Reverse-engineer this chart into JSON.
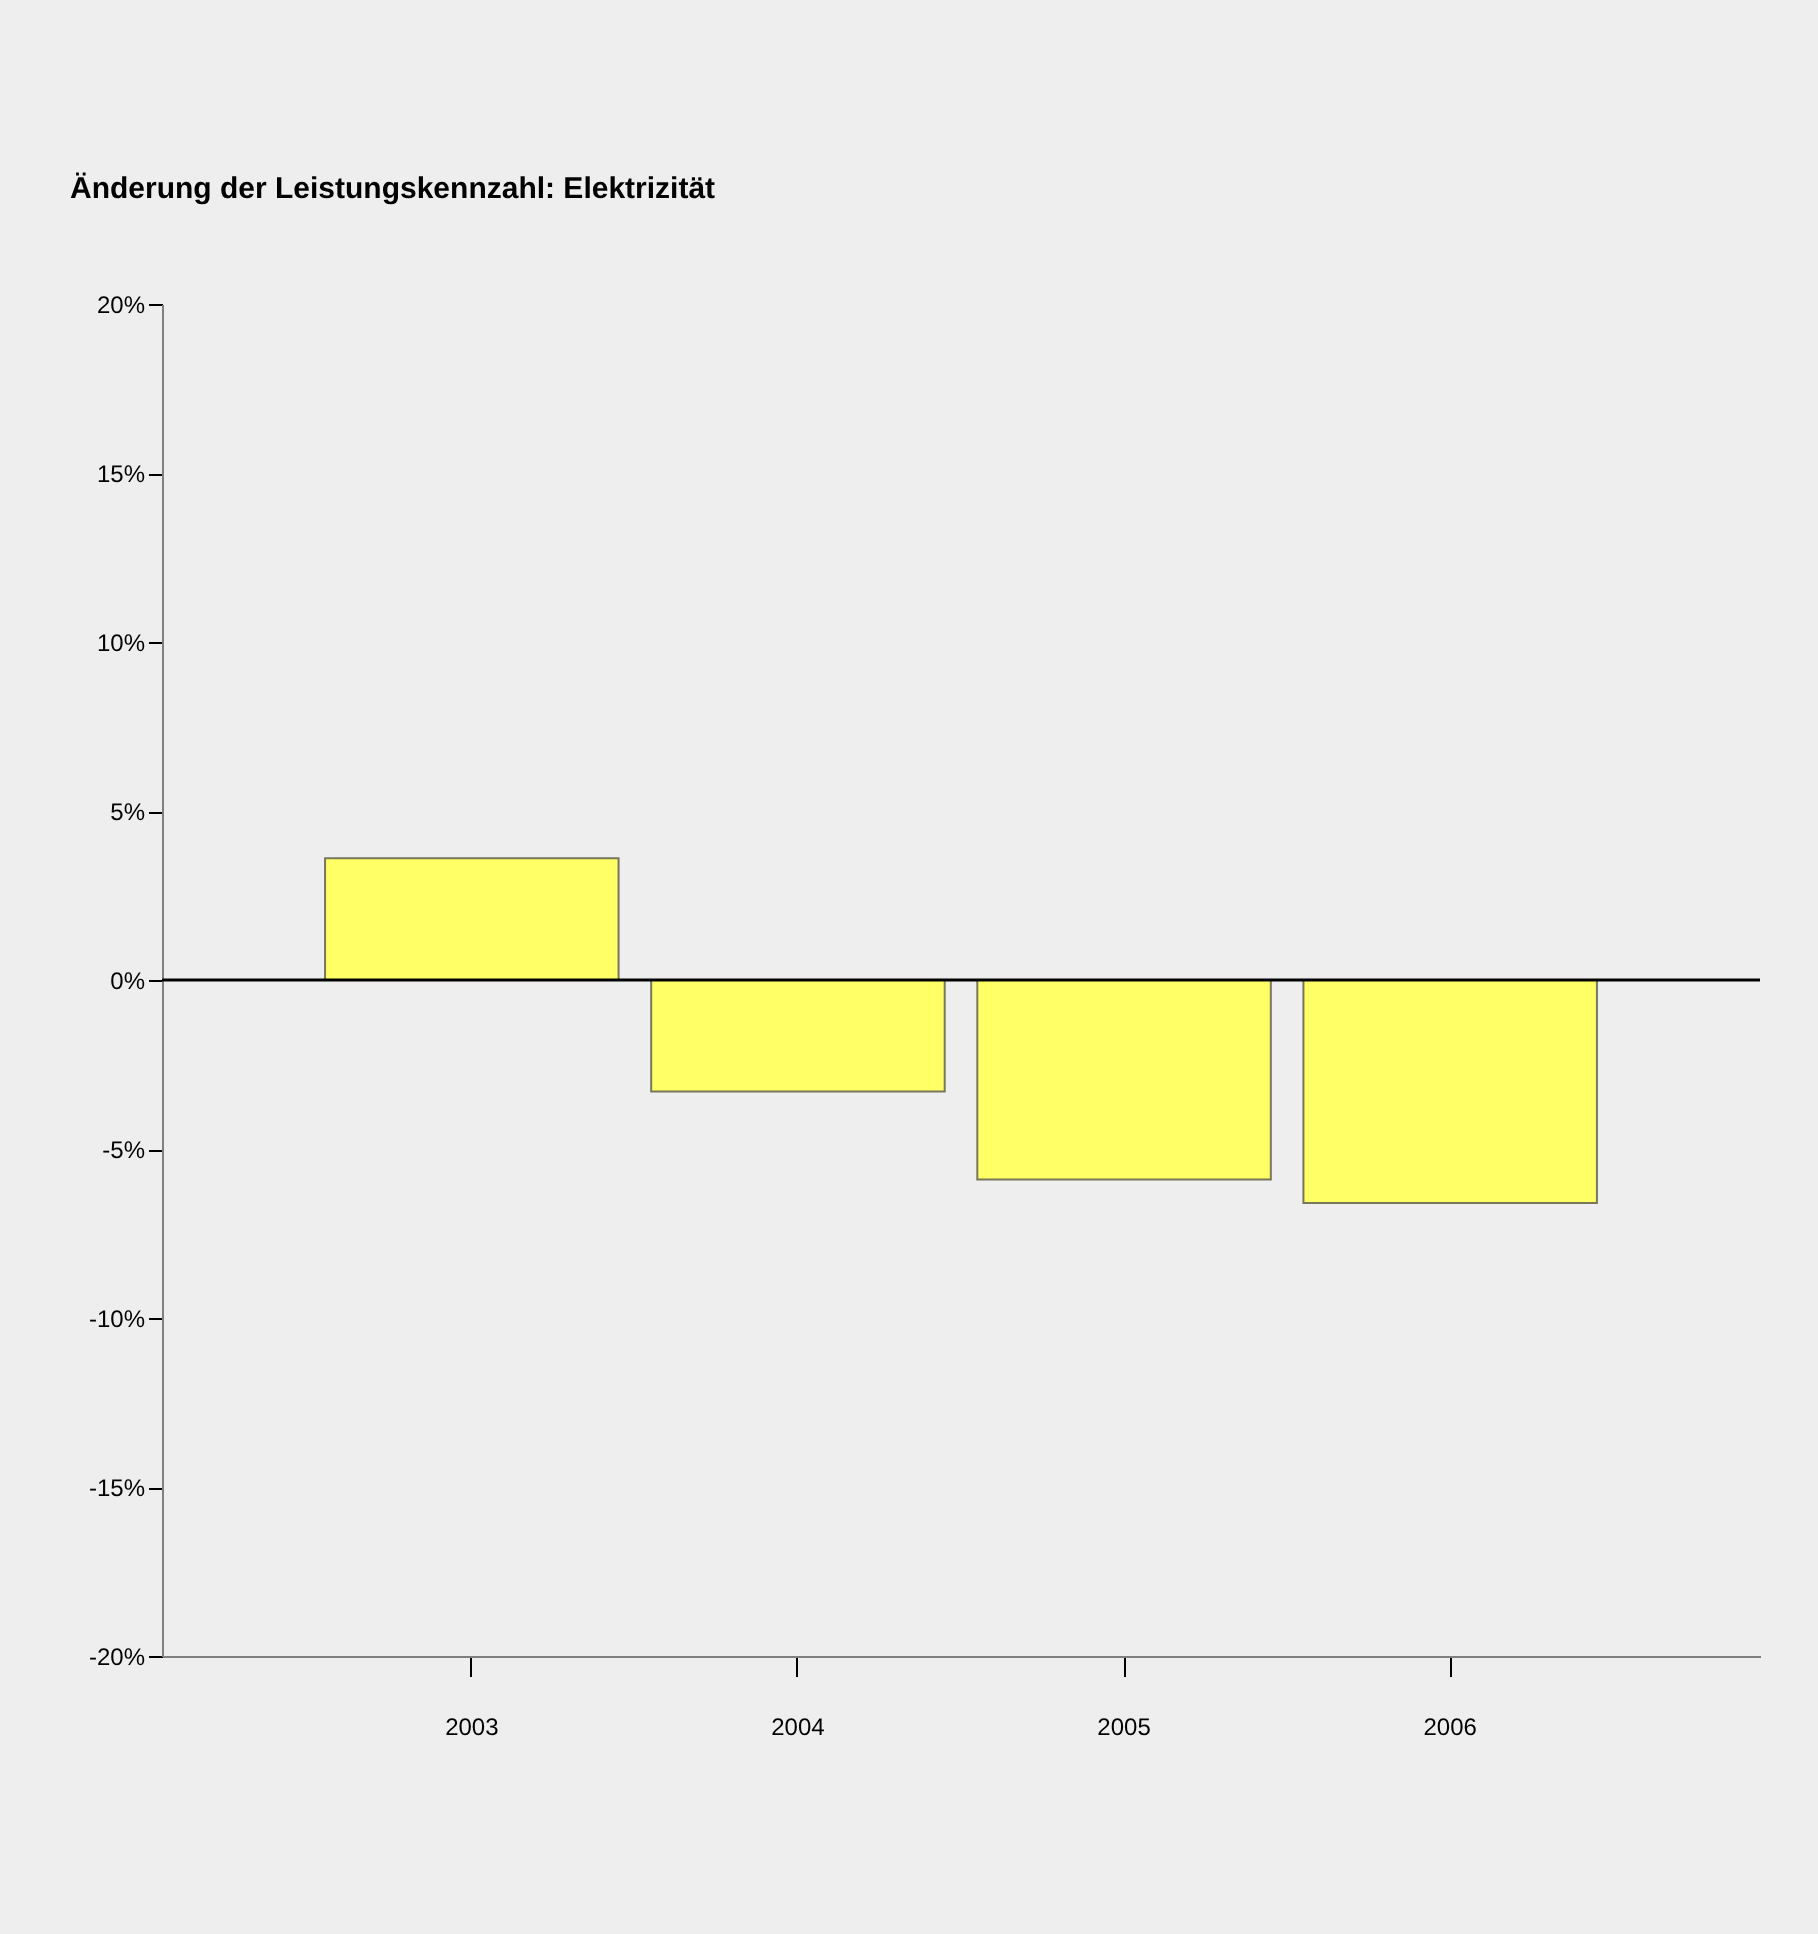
{
  "chart_data": {
    "type": "bar",
    "title": "Änderung der Leistungskennzahl: Elektrizität",
    "categories": [
      "2003",
      "2004",
      "2005",
      "2006"
    ],
    "values": [
      3.6,
      -3.3,
      -5.9,
      -6.6
    ],
    "color": "#ffff66",
    "ylim": [
      -20,
      20
    ],
    "yticks": [
      {
        "value": -20,
        "label": "-20%"
      },
      {
        "value": -15,
        "label": "-15%"
      },
      {
        "value": -10,
        "label": "-10%"
      },
      {
        "value": -5,
        "label": "-5%"
      },
      {
        "value": 0,
        "label": "0%"
      },
      {
        "value": 5,
        "label": "5%"
      },
      {
        "value": 10,
        "label": "10%"
      },
      {
        "value": 15,
        "label": "15%"
      },
      {
        "value": 20,
        "label": "20%"
      }
    ],
    "ref_lines": [
      {
        "axis": "y",
        "value": 0,
        "color": "#000000"
      }
    ]
  }
}
